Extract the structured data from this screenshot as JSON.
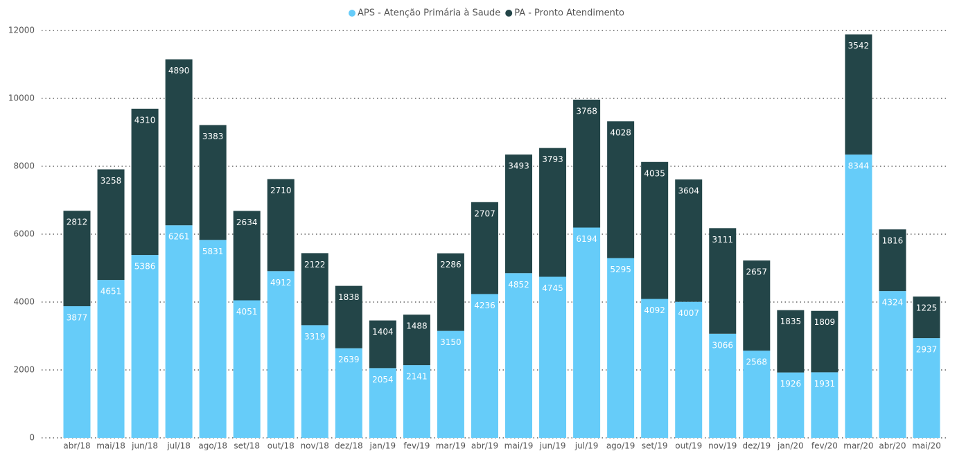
{
  "chart_data": {
    "type": "stacked_bar",
    "categories": [
      "abr/18",
      "mai/18",
      "jun/18",
      "jul/18",
      "ago/18",
      "set/18",
      "out/18",
      "nov/18",
      "dez/18",
      "jan/19",
      "fev/19",
      "mar/19",
      "abr/19",
      "mai/19",
      "jun/19",
      "jul/19",
      "ago/19",
      "set/19",
      "out/19",
      "nov/19",
      "dez/19",
      "jan/20",
      "fev/20",
      "mar/20",
      "abr/20",
      "mai/20"
    ],
    "series": [
      {
        "name": "APS - Atenção Primária à Saude",
        "color": "#66ccf9",
        "values": [
          3877,
          4651,
          5386,
          6261,
          5831,
          4051,
          4912,
          3319,
          2639,
          2054,
          2141,
          3150,
          4236,
          4852,
          4745,
          6194,
          5295,
          4092,
          4007,
          3066,
          2568,
          1926,
          1931,
          8344,
          4324,
          2937
        ]
      },
      {
        "name": "PA - Pronto Atendimento",
        "color": "#234548",
        "values": [
          2812,
          3258,
          4310,
          4890,
          3383,
          2634,
          2710,
          2122,
          1838,
          1404,
          1488,
          2286,
          2707,
          3493,
          3793,
          3768,
          4028,
          4035,
          3604,
          3111,
          2657,
          1835,
          1809,
          3542,
          1816,
          1225
        ]
      }
    ],
    "ylim": [
      0,
      12000
    ],
    "yticks": [
      0,
      2000,
      4000,
      6000,
      8000,
      10000,
      12000
    ],
    "grid": true,
    "legend": "top"
  }
}
